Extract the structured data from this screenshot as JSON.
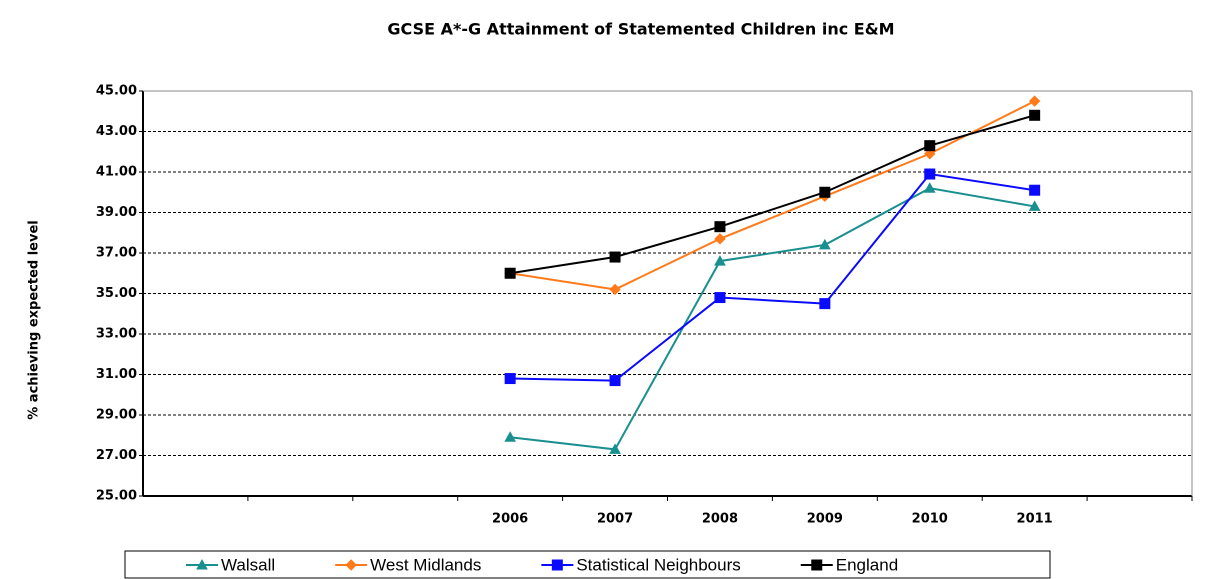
{
  "chart_data": {
    "type": "line",
    "title": "GCSE A*-G Attainment of Statemented Children inc E&M",
    "y_label": "% achieving  expected level",
    "categories": [
      null,
      null,
      null,
      "2006",
      "2007",
      "2008",
      "2009",
      "2010",
      "2011",
      null
    ],
    "series": [
      {
        "name": "Walsall",
        "color": "#1a8f8f",
        "marker": "triangle",
        "values": [
          null,
          null,
          null,
          27.9,
          27.3,
          36.6,
          37.4,
          40.2,
          39.3,
          null
        ]
      },
      {
        "name": "West Midlands",
        "color": "#ff7a1a",
        "marker": "diamond",
        "values": [
          null,
          null,
          null,
          36.0,
          35.2,
          37.7,
          39.8,
          41.9,
          44.5,
          null
        ]
      },
      {
        "name": "Statistical Neighbours",
        "color": "#0a0aff",
        "marker": "square",
        "values": [
          null,
          null,
          null,
          30.8,
          30.7,
          34.8,
          34.5,
          40.9,
          40.1,
          null
        ]
      },
      {
        "name": "England",
        "color": "#000000",
        "marker": "square",
        "values": [
          null,
          null,
          null,
          36.0,
          36.8,
          38.3,
          40.0,
          42.3,
          43.8,
          null
        ]
      }
    ],
    "ylim": [
      25,
      45
    ],
    "yticks": [
      {
        "value": 25,
        "label": "25.00"
      },
      {
        "value": 27,
        "label": "27.00"
      },
      {
        "value": 29,
        "label": "29.00"
      },
      {
        "value": 31,
        "label": "31.00"
      },
      {
        "value": 33,
        "label": "33.00"
      },
      {
        "value": 35,
        "label": "35.00"
      },
      {
        "value": 37,
        "label": "37.00"
      },
      {
        "value": 39,
        "label": "39.00"
      },
      {
        "value": 41,
        "label": "41.00"
      },
      {
        "value": 43,
        "label": "43.00"
      },
      {
        "value": 45,
        "label": "45.00"
      }
    ],
    "grid": true,
    "legend": "bottom"
  }
}
